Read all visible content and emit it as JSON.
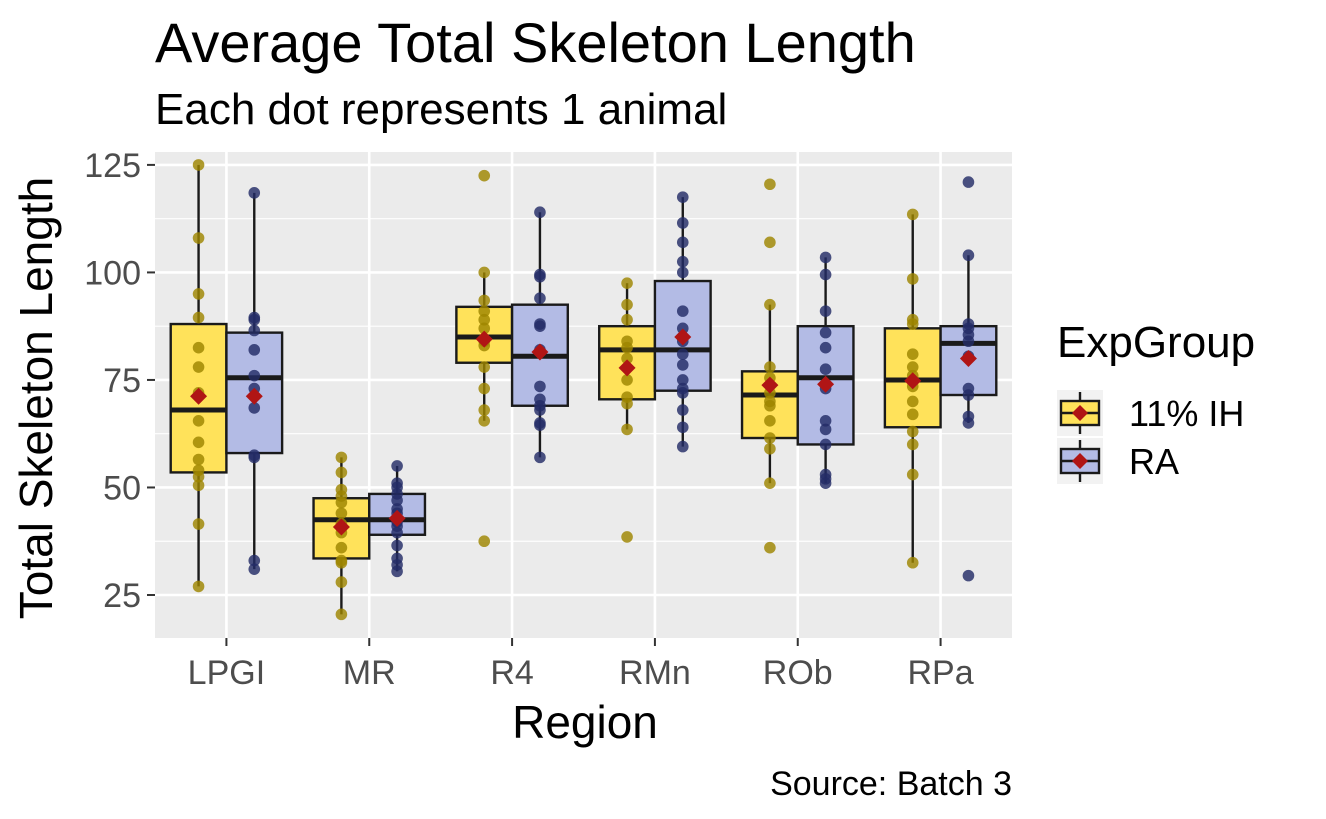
{
  "chart_data": {
    "type": "box",
    "title": "Average Total Skeleton Length",
    "subtitle": "Each dot represents 1 animal",
    "xlabel": "Region",
    "ylabel": "Total Skeleton Length",
    "caption": "Source: Batch 3",
    "ylim": [
      15,
      128
    ],
    "yticks": [
      25,
      50,
      75,
      100,
      125
    ],
    "grid": true,
    "legend": {
      "title": "ExpGroup",
      "position": "right",
      "entries": [
        "11% IH",
        "RA"
      ]
    },
    "categories": [
      "LPGI",
      "MR",
      "R4",
      "RMn",
      "ROb",
      "RPa"
    ],
    "colors": {
      "11% IH": {
        "fill": "#FFE25A",
        "point": "#9E8500"
      },
      "RA": {
        "fill": "#B3BBE5",
        "point": "#232C66"
      },
      "mean": "#B01515",
      "panel": "#EBEBEB",
      "grid": "#FFFFFF"
    },
    "series": [
      {
        "name": "11% IH",
        "boxes": [
          {
            "category": "LPGI",
            "whisker_low": 27,
            "q1": 53.5,
            "median": 68,
            "q3": 88,
            "whisker_high": 125,
            "mean": 71.2,
            "points": [
              125,
              108,
              95,
              89.5,
              82.5,
              78,
              72,
              65.5,
              60.5,
              56.5,
              54,
              52.5,
              50.5,
              41.5,
              27
            ]
          },
          {
            "category": "MR",
            "whisker_low": 20.5,
            "q1": 33.5,
            "median": 42.5,
            "q3": 47.5,
            "whisker_high": 57,
            "mean": 40.8,
            "points": [
              57,
              53.5,
              49.5,
              48,
              46.5,
              44,
              41.5,
              39.5,
              36,
              33,
              32.5,
              28,
              20.5
            ]
          },
          {
            "category": "R4",
            "whisker_low": 65.5,
            "q1": 79,
            "median": 85,
            "q3": 92,
            "whisker_high": 100,
            "mean": 84.5,
            "points": [
              122.5,
              100,
              93.5,
              91,
              89,
              87,
              84,
              83,
              78,
              73,
              68,
              65.5,
              37.5
            ]
          },
          {
            "category": "RMn",
            "whisker_low": 63.5,
            "q1": 70.5,
            "median": 82,
            "q3": 87.5,
            "whisker_high": 97.5,
            "mean": 77.8,
            "points": [
              97.5,
              92.5,
              89,
              84,
              82.5,
              80,
              75,
              71,
              69.5,
              63.5,
              38.5
            ]
          },
          {
            "category": "ROb",
            "whisker_low": 51,
            "q1": 61.5,
            "median": 71.5,
            "q3": 77,
            "whisker_high": 92.5,
            "mean": 73.8,
            "points": [
              120.5,
              107,
              92.5,
              78,
              75.5,
              72,
              70,
              69,
              65.5,
              61.5,
              59,
              51,
              36
            ]
          },
          {
            "category": "RPa",
            "whisker_low": 32.5,
            "q1": 64,
            "median": 75,
            "q3": 87,
            "whisker_high": 113.5,
            "mean": 74.8,
            "points": [
              113.5,
              98.5,
              89,
              88,
              81,
              78,
              76,
              73.5,
              70,
              67,
              63,
              60,
              53,
              32.5
            ]
          }
        ]
      },
      {
        "name": "RA",
        "boxes": [
          {
            "category": "LPGI",
            "whisker_low": 31,
            "q1": 58,
            "median": 75.5,
            "q3": 86,
            "whisker_high": 118.5,
            "mean": 71.2,
            "points": [
              118.5,
              89.5,
              89,
              86.5,
              82,
              76,
              73,
              68.5,
              57.5,
              57,
              33,
              31
            ]
          },
          {
            "category": "MR",
            "whisker_low": 30.5,
            "q1": 39,
            "median": 42.5,
            "q3": 48.5,
            "whisker_high": 55,
            "mean": 42.8,
            "points": [
              55,
              51,
              50,
              48.5,
              47,
              45,
              44,
              42,
              41,
              39.5,
              36.5,
              33.5,
              32,
              30.5
            ]
          },
          {
            "category": "R4",
            "whisker_low": 57,
            "q1": 69,
            "median": 80.5,
            "q3": 92.5,
            "whisker_high": 114,
            "mean": 81.5,
            "points": [
              114,
              99.5,
              99,
              94,
              88,
              87.5,
              82,
              73.5,
              70.5,
              69,
              68,
              65,
              64.5,
              57
            ]
          },
          {
            "category": "RMn",
            "whisker_low": 59.5,
            "q1": 72.5,
            "median": 82,
            "q3": 98,
            "whisker_high": 117.5,
            "mean": 85,
            "points": [
              117.5,
              111.5,
              107,
              102.5,
              100,
              91,
              87,
              84,
              81,
              78.5,
              75,
              73,
              72,
              68,
              64,
              59.5
            ]
          },
          {
            "category": "ROb",
            "whisker_low": 51,
            "q1": 60,
            "median": 75.5,
            "q3": 87.5,
            "whisker_high": 103.5,
            "mean": 74,
            "points": [
              103.5,
              99.5,
              91,
              86,
              82.5,
              77.5,
              73,
              65.5,
              63.5,
              60,
              53,
              52,
              51
            ]
          },
          {
            "category": "RPa",
            "whisker_low": 65,
            "q1": 71.5,
            "median": 83.5,
            "q3": 87.5,
            "whisker_high": 104,
            "mean": 80,
            "points": [
              121,
              104,
              88,
              87,
              85.5,
              84,
              80.5,
              73,
              71.5,
              66.5,
              65,
              29.5
            ]
          }
        ]
      }
    ]
  }
}
